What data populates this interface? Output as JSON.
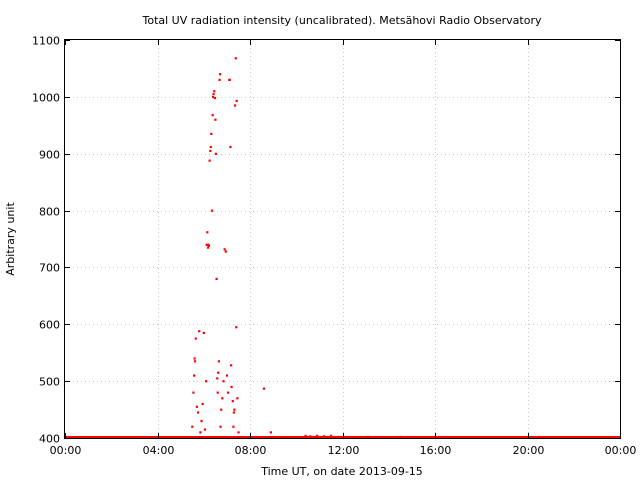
{
  "chart_data": {
    "type": "scatter",
    "title": "Total UV radiation intensity (uncalibrated). Metsähovi Radio Observatory",
    "xlabel": "Time UT, on date 2013-09-15",
    "ylabel": "Arbitrary unit",
    "xlim": [
      0,
      24
    ],
    "ylim": [
      400,
      1100
    ],
    "x_ticks": [
      {
        "v": 0,
        "label": "00:00"
      },
      {
        "v": 4,
        "label": "04:00"
      },
      {
        "v": 8,
        "label": "08:00"
      },
      {
        "v": 12,
        "label": "12:00"
      },
      {
        "v": 16,
        "label": "16:00"
      },
      {
        "v": 20,
        "label": "20:00"
      },
      {
        "v": 24,
        "label": "00:00"
      }
    ],
    "y_ticks": [
      {
        "v": 400,
        "label": "400"
      },
      {
        "v": 500,
        "label": "500"
      },
      {
        "v": 600,
        "label": "600"
      },
      {
        "v": 700,
        "label": "700"
      },
      {
        "v": 800,
        "label": "800"
      },
      {
        "v": 900,
        "label": "900"
      },
      {
        "v": 1000,
        "label": "1000"
      },
      {
        "v": 1100,
        "label": "1100"
      }
    ],
    "grid": true,
    "marker_color": "#ff0000",
    "baseline": {
      "value": 400,
      "x_range": [
        0,
        24
      ]
    },
    "points": [
      [
        5.5,
        420
      ],
      [
        5.55,
        480
      ],
      [
        5.58,
        510
      ],
      [
        5.6,
        540
      ],
      [
        5.62,
        535
      ],
      [
        5.65,
        575
      ],
      [
        5.7,
        455
      ],
      [
        5.75,
        445
      ],
      [
        5.8,
        588
      ],
      [
        5.85,
        410
      ],
      [
        5.9,
        430
      ],
      [
        5.95,
        460
      ],
      [
        6.0,
        585
      ],
      [
        6.05,
        415
      ],
      [
        6.1,
        500
      ],
      [
        6.12,
        740
      ],
      [
        6.15,
        762
      ],
      [
        6.18,
        735
      ],
      [
        6.2,
        740
      ],
      [
        6.22,
        738
      ],
      [
        6.25,
        888
      ],
      [
        6.28,
        905
      ],
      [
        6.3,
        912
      ],
      [
        6.32,
        935
      ],
      [
        6.35,
        800
      ],
      [
        6.38,
        968
      ],
      [
        6.4,
        1000
      ],
      [
        6.42,
        1005
      ],
      [
        6.45,
        1010
      ],
      [
        6.48,
        998
      ],
      [
        6.5,
        960
      ],
      [
        6.52,
        900
      ],
      [
        6.55,
        680
      ],
      [
        6.58,
        505
      ],
      [
        6.6,
        480
      ],
      [
        6.62,
        515
      ],
      [
        6.65,
        535
      ],
      [
        6.68,
        1030
      ],
      [
        6.7,
        1040
      ],
      [
        6.72,
        420
      ],
      [
        6.75,
        450
      ],
      [
        6.8,
        470
      ],
      [
        6.85,
        500
      ],
      [
        6.9,
        732
      ],
      [
        6.95,
        728
      ],
      [
        7.0,
        510
      ],
      [
        7.05,
        480
      ],
      [
        7.1,
        1030
      ],
      [
        7.12,
        1030
      ],
      [
        7.15,
        912
      ],
      [
        7.18,
        528
      ],
      [
        7.2,
        490
      ],
      [
        7.25,
        465
      ],
      [
        7.28,
        420
      ],
      [
        7.3,
        445
      ],
      [
        7.32,
        450
      ],
      [
        7.35,
        985
      ],
      [
        7.38,
        1068
      ],
      [
        7.4,
        595
      ],
      [
        7.42,
        993
      ],
      [
        7.45,
        470
      ],
      [
        7.5,
        410
      ],
      [
        8.6,
        487
      ],
      [
        8.9,
        410
      ],
      [
        10.4,
        404
      ],
      [
        10.6,
        403
      ],
      [
        10.9,
        404
      ],
      [
        11.2,
        403
      ],
      [
        11.5,
        404
      ],
      [
        11.8,
        402
      ],
      [
        13.1,
        402
      ],
      [
        14.5,
        402
      ],
      [
        16.0,
        402
      ],
      [
        20.5,
        402
      ]
    ]
  }
}
